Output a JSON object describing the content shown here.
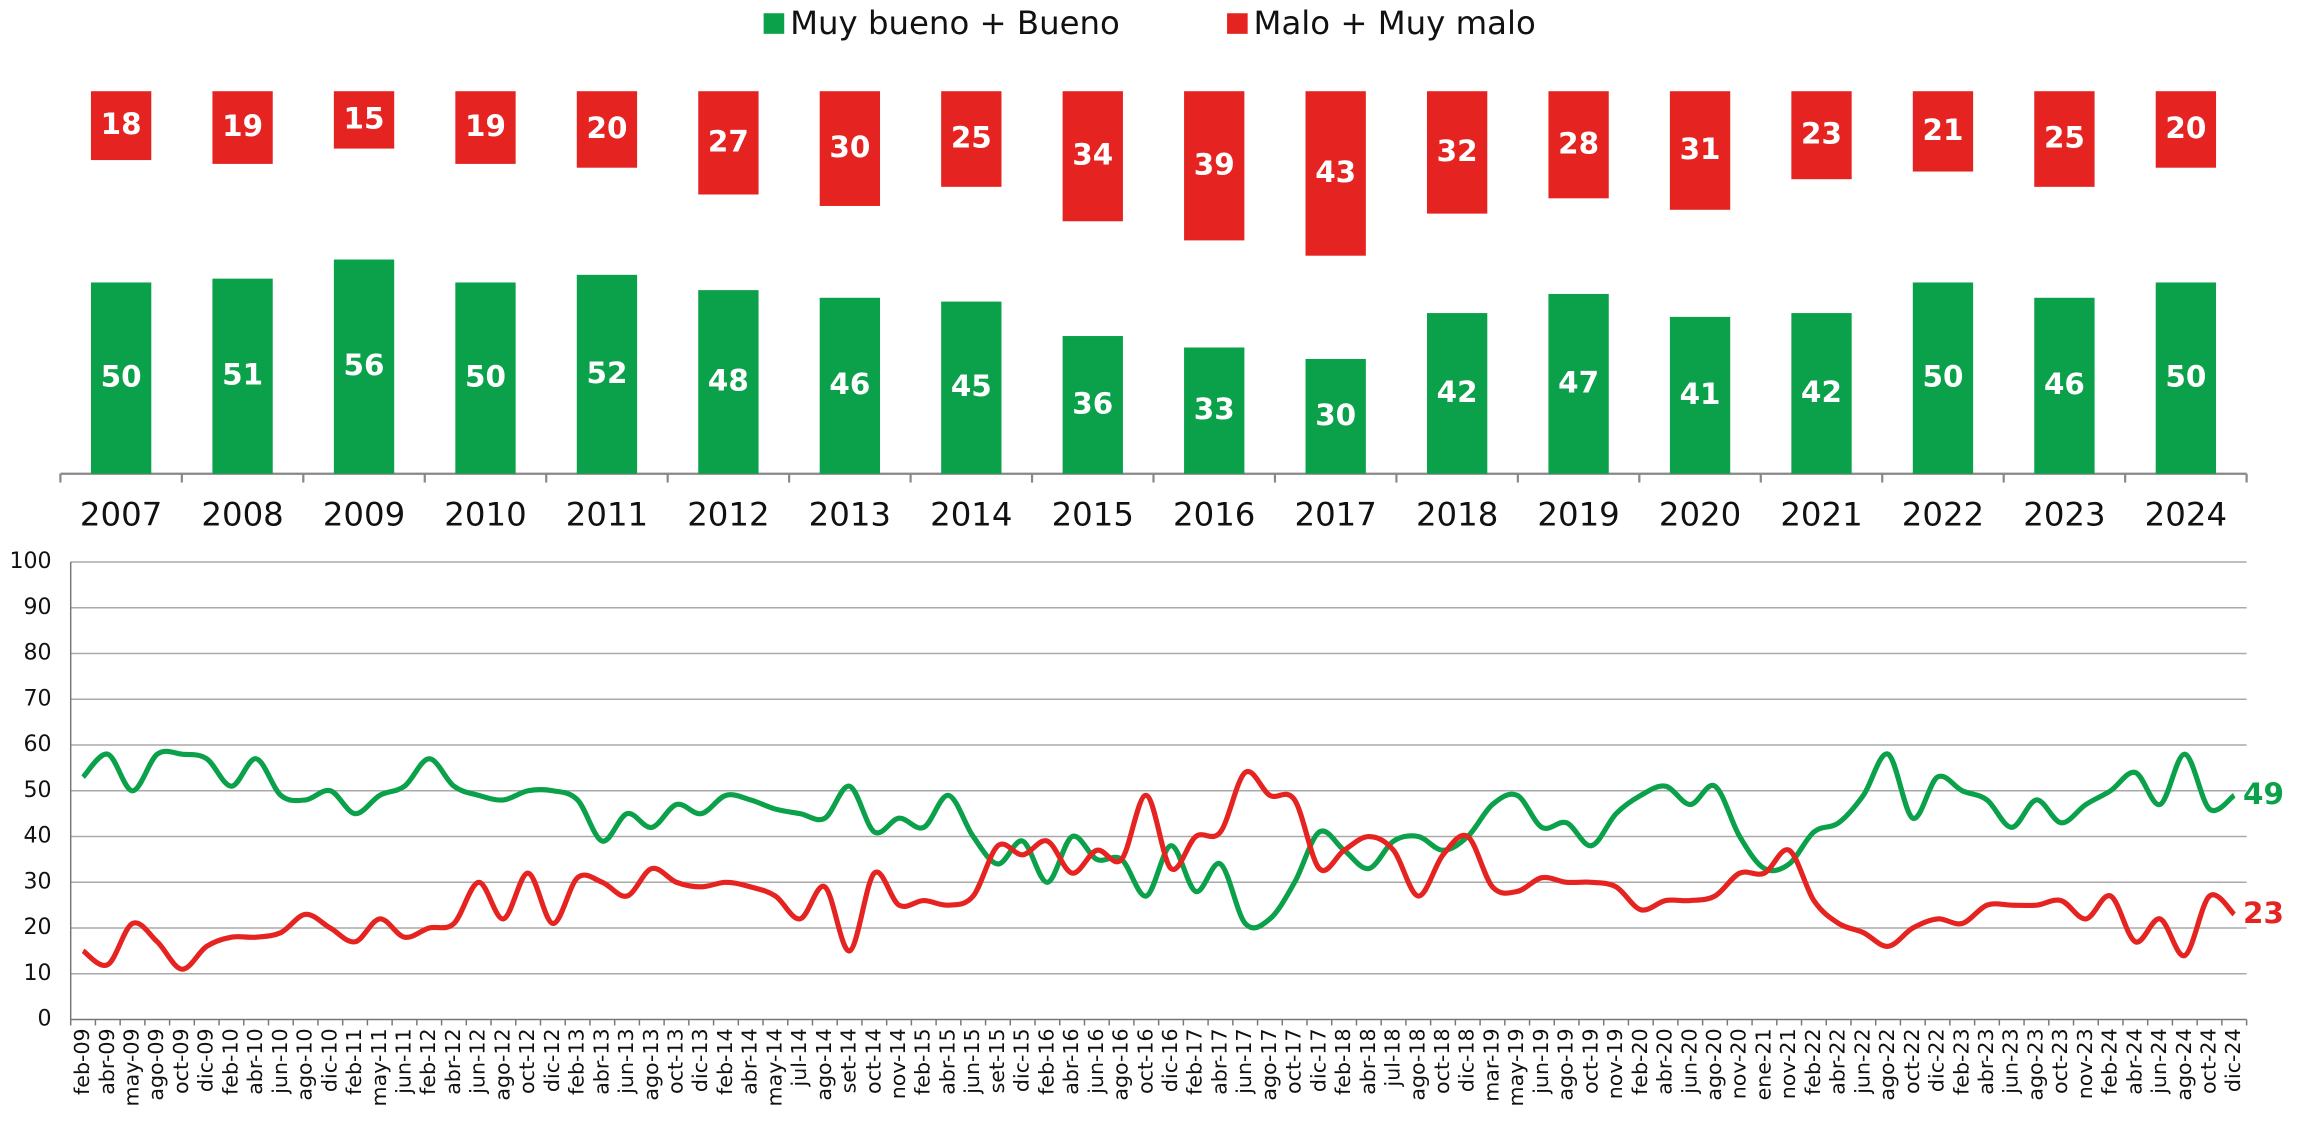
{
  "chart_data": [
    {
      "type": "bar",
      "categories": [
        "2007",
        "2008",
        "2009",
        "2010",
        "2011",
        "2012",
        "2013",
        "2014",
        "2015",
        "2016",
        "2017",
        "2018",
        "2019",
        "2020",
        "2021",
        "2022",
        "2023",
        "2024"
      ],
      "series": [
        {
          "name": "Muy bueno + Bueno",
          "color": "#0aa14a",
          "values": [
            50,
            51,
            56,
            50,
            52,
            48,
            46,
            45,
            36,
            33,
            30,
            42,
            47,
            41,
            42,
            50,
            46,
            50
          ]
        },
        {
          "name": "Malo + Muy malo",
          "color": "#e52421",
          "values": [
            18,
            19,
            15,
            19,
            20,
            27,
            30,
            25,
            34,
            39,
            43,
            32,
            28,
            31,
            23,
            21,
            25,
            20
          ]
        }
      ]
    },
    {
      "type": "line",
      "categories": [
        "feb-09",
        "abr-09",
        "may-09",
        "ago-09",
        "oct-09",
        "dic-09",
        "feb-10",
        "abr-10",
        "jun-10",
        "ago-10",
        "dic-10",
        "feb-11",
        "may-11",
        "jun-11",
        "feb-12",
        "abr-12",
        "jun-12",
        "ago-12",
        "oct-12",
        "dic-12",
        "feb-13",
        "abr-13",
        "jun-13",
        "ago-13",
        "oct-13",
        "dic-13",
        "feb-14",
        "abr-14",
        "may-14",
        "jul-14",
        "ago-14",
        "set-14",
        "oct-14",
        "nov-14",
        "feb-15",
        "abr-15",
        "jun-15",
        "set-15",
        "dic-15",
        "feb-16",
        "abr-16",
        "jun-16",
        "ago-16",
        "oct-16",
        "dic-16",
        "feb-17",
        "abr-17",
        "jun-17",
        "ago-17",
        "oct-17",
        "dic-17",
        "feb-18",
        "abr-18",
        "jul-18",
        "ago-18",
        "oct-18",
        "dic-18",
        "mar-19",
        "may-19",
        "jun-19",
        "ago-19",
        "oct-19",
        "nov-19",
        "feb-20",
        "abr-20",
        "jun-20",
        "ago-20",
        "nov-20",
        "ene-21",
        "nov-21",
        "feb-22",
        "abr-22",
        "jun-22",
        "ago-22",
        "oct-22",
        "dic-22",
        "feb-23",
        "abr-23",
        "jun-23",
        "ago-23",
        "oct-23",
        "nov-23",
        "feb-24",
        "abr-24",
        "jun-24",
        "ago-24",
        "oct-24",
        "dic-24"
      ],
      "series": [
        {
          "color": "#0aa14a",
          "values": [
            53,
            58,
            50,
            58,
            58,
            57,
            51,
            57,
            49,
            48,
            50,
            45,
            49,
            51,
            57,
            51,
            49,
            48,
            50,
            50,
            48,
            39,
            45,
            42,
            47,
            45,
            49,
            48,
            46,
            45,
            44,
            51,
            41,
            44,
            42,
            49,
            40,
            34,
            39,
            30,
            40,
            35,
            35,
            27,
            38,
            28,
            34,
            21,
            22,
            30,
            41,
            37,
            33,
            39,
            40,
            37,
            40,
            47,
            49,
            42,
            43,
            38,
            45,
            49,
            51,
            47,
            51,
            40,
            33,
            34,
            41,
            43,
            49,
            58,
            44,
            53,
            50,
            48,
            42,
            48,
            43,
            47,
            50,
            54,
            47,
            58,
            46,
            49
          ]
        },
        {
          "color": "#e52421",
          "values": [
            15,
            12,
            21,
            17,
            11,
            16,
            18,
            18,
            19,
            23,
            20,
            17,
            22,
            18,
            20,
            21,
            30,
            22,
            32,
            21,
            31,
            30,
            27,
            33,
            30,
            29,
            30,
            29,
            27,
            22,
            29,
            15,
            32,
            25,
            26,
            25,
            27,
            38,
            36,
            39,
            32,
            37,
            35,
            49,
            33,
            40,
            41,
            54,
            49,
            48,
            33,
            37,
            40,
            37,
            27,
            36,
            40,
            29,
            28,
            31,
            30,
            30,
            29,
            24,
            26,
            26,
            27,
            32,
            32,
            37,
            26,
            21,
            19,
            16,
            20,
            22,
            21,
            25,
            25,
            25,
            26,
            22,
            27,
            17,
            22,
            14,
            27,
            23
          ]
        }
      ],
      "ylim": [
        0,
        100
      ],
      "yticks": [
        0,
        10,
        20,
        30,
        40,
        50,
        60,
        70,
        80,
        90,
        100
      ],
      "grid": true
    }
  ]
}
